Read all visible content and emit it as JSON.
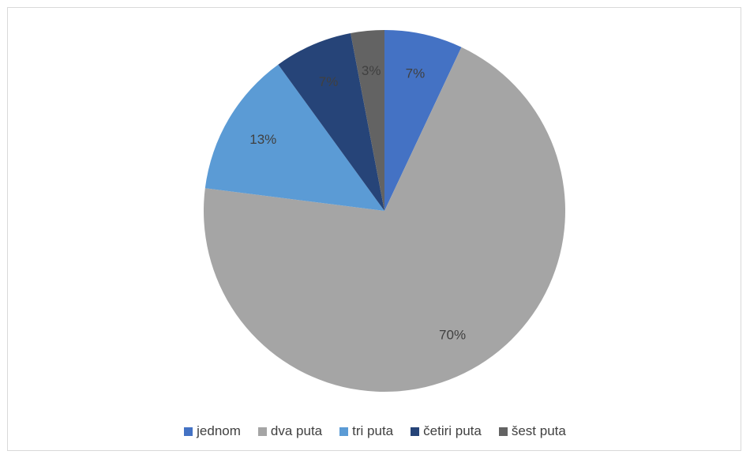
{
  "chart_data": {
    "type": "pie",
    "title": "",
    "legend_position": "bottom",
    "slices": [
      {
        "label": "jednom",
        "value": 7,
        "display": "7%",
        "color": "#4472c4"
      },
      {
        "label": "dva puta",
        "value": 70,
        "display": "70%",
        "color": "#a5a5a5"
      },
      {
        "label": "tri puta",
        "value": 13,
        "display": "13%",
        "color": "#5b9bd5"
      },
      {
        "label": "četiri puta",
        "value": 7,
        "display": "7%",
        "color": "#264478"
      },
      {
        "label": "šest puta",
        "value": 3,
        "display": "3%",
        "color": "#636363"
      }
    ]
  }
}
